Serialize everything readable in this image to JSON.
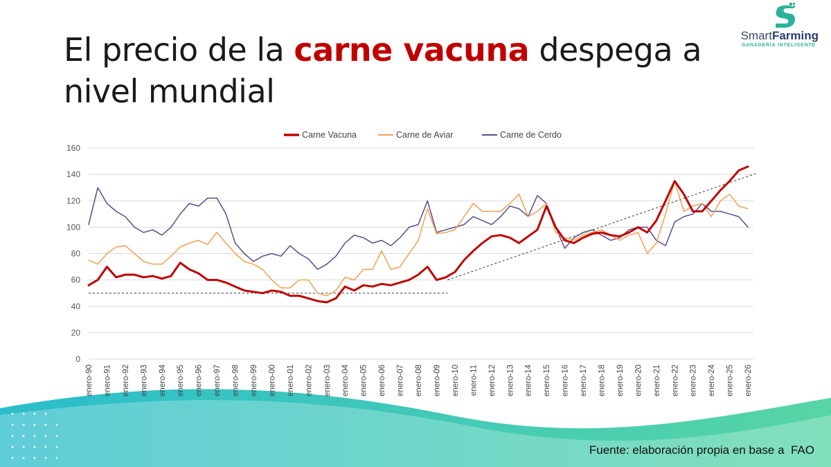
{
  "title": {
    "part1": "El precio de la ",
    "highlight": "carne vacuna",
    "part2": " despega a nivel mundial"
  },
  "logo": {
    "brand_light": "Smart",
    "brand_bold": "Farming",
    "tagline": "GANADERÍA INTELIGENTE",
    "icon": "s-leaf-logo-icon"
  },
  "footer": "Fuente: elaboración propia en base a  FAO",
  "colors": {
    "beef": "#c00000",
    "poultry": "#f0a050",
    "pork": "#5b4a8a",
    "accent": "#c00000",
    "wave_start": "#1fb9c9",
    "wave_end": "#4fd3a0"
  },
  "chart_data": {
    "type": "line",
    "x_ticks": [
      "enero-90",
      "enero-91",
      "enero-92",
      "enero-93",
      "enero-94",
      "enero-95",
      "enero-96",
      "enero-97",
      "enero-98",
      "enero-99",
      "enero-00",
      "enero-01",
      "enero-02",
      "enero-03",
      "enero-04",
      "enero-05",
      "enero-06",
      "enero-07",
      "enero-08",
      "enero-09",
      "enero-10",
      "enero-11",
      "enero-12",
      "enero-13",
      "enero-14",
      "enero-15",
      "enero-16",
      "enero-17",
      "enero-18",
      "enero-19",
      "enero-20",
      "enero-21",
      "enero-22",
      "enero-23",
      "enero-24",
      "enero-25",
      "enero-26"
    ],
    "ylim": [
      0,
      160
    ],
    "yticks": [
      0,
      20,
      40,
      60,
      80,
      100,
      120,
      140,
      160
    ],
    "legend_position": "top",
    "grid": true,
    "xlabel": "",
    "ylabel": "",
    "x": [
      1990,
      1990.5,
      1991,
      1991.5,
      1992,
      1992.5,
      1993,
      1993.5,
      1994,
      1994.5,
      1995,
      1995.5,
      1996,
      1996.5,
      1997,
      1997.5,
      1998,
      1998.5,
      1999,
      1999.5,
      2000,
      2000.5,
      2001,
      2001.5,
      2002,
      2002.5,
      2003,
      2003.5,
      2004,
      2004.5,
      2005,
      2005.5,
      2006,
      2006.5,
      2007,
      2007.5,
      2008,
      2008.5,
      2009,
      2009.5,
      2010,
      2010.5,
      2011,
      2011.5,
      2012,
      2012.5,
      2013,
      2013.5,
      2014,
      2014.5,
      2015,
      2015.5,
      2016,
      2016.5,
      2017,
      2017.5,
      2018,
      2018.5,
      2019,
      2019.5,
      2020,
      2020.5,
      2021,
      2021.5,
      2022,
      2022.5,
      2023,
      2023.5,
      2024,
      2024.5,
      2025,
      2025.5,
      2026
    ],
    "series": [
      {
        "name": "Carne Vacuna",
        "color": "#c00000",
        "width": 3,
        "values": [
          56,
          60,
          70,
          62,
          64,
          64,
          62,
          63,
          61,
          63,
          73,
          68,
          65,
          60,
          60,
          58,
          55,
          52,
          51,
          50,
          52,
          51,
          48,
          48,
          46,
          44,
          43,
          46,
          55,
          52,
          56,
          55,
          57,
          56,
          58,
          60,
          64,
          70,
          60,
          62,
          66,
          75,
          82,
          88,
          93,
          94,
          92,
          88,
          93,
          98,
          116,
          100,
          90,
          88,
          92,
          95,
          96,
          94,
          93,
          96,
          100,
          96,
          105,
          120,
          135,
          125,
          112,
          112,
          120,
          128,
          135,
          143,
          146
        ]
      },
      {
        "name": "Carne de Aviar",
        "color": "#f0a050",
        "width": 1.5,
        "values": [
          75,
          72,
          80,
          85,
          86,
          80,
          74,
          72,
          72,
          78,
          85,
          88,
          90,
          87,
          96,
          88,
          80,
          74,
          72,
          68,
          60,
          54,
          54,
          60,
          60,
          50,
          48,
          52,
          62,
          60,
          68,
          68,
          82,
          68,
          70,
          80,
          90,
          114,
          95,
          96,
          98,
          108,
          118,
          112,
          112,
          112,
          118,
          125,
          108,
          112,
          118,
          96,
          92,
          90,
          94,
          96,
          98,
          94,
          90,
          94,
          96,
          80,
          88,
          110,
          135,
          112,
          116,
          118,
          108,
          120,
          125,
          116,
          114
        ]
      },
      {
        "name": "Carne de Cerdo",
        "color": "#5b4a8a",
        "width": 1.5,
        "values": [
          102,
          130,
          118,
          112,
          108,
          100,
          96,
          98,
          94,
          100,
          110,
          118,
          116,
          122,
          122,
          110,
          88,
          80,
          74,
          78,
          80,
          78,
          86,
          80,
          76,
          68,
          72,
          78,
          88,
          94,
          92,
          88,
          90,
          86,
          92,
          100,
          102,
          120,
          96,
          98,
          100,
          102,
          108,
          105,
          102,
          108,
          116,
          114,
          108,
          124,
          118,
          100,
          84,
          92,
          96,
          98,
          94,
          90,
          92,
          98,
          100,
          100,
          90,
          86,
          104,
          108,
          110,
          118,
          112,
          112,
          110,
          108,
          100
        ]
      }
    ],
    "trendlines": [
      {
        "style": "dashed",
        "from": [
          1990,
          50
        ],
        "to": [
          2009.6,
          50
        ]
      },
      {
        "style": "dashed",
        "from": [
          2009.6,
          60
        ],
        "to": [
          2026.5,
          141
        ]
      }
    ]
  }
}
